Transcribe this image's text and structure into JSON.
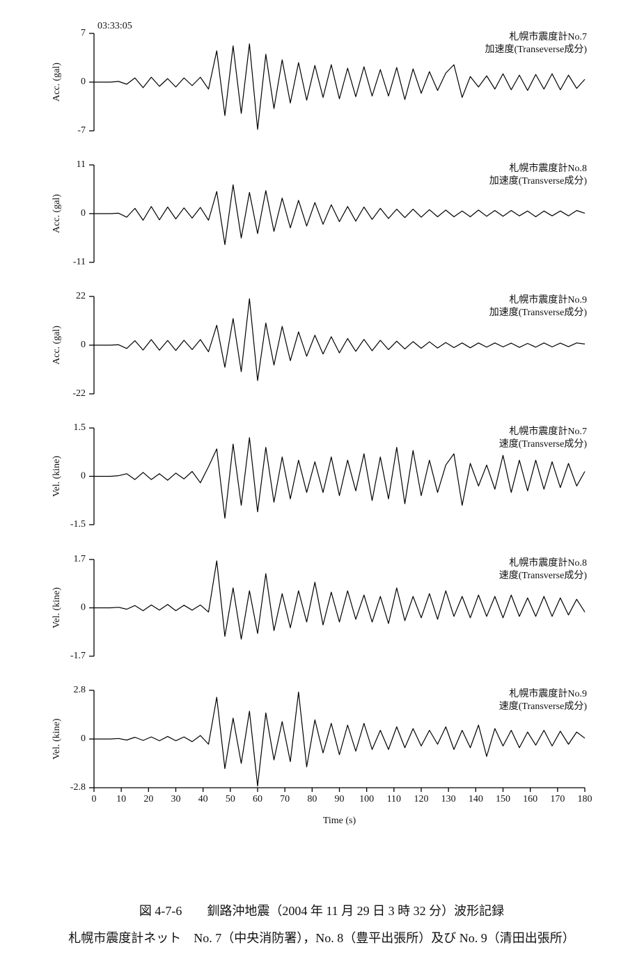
{
  "chart_data": [
    {
      "type": "line",
      "timestamp": "03:33:05",
      "ylabel": "Acc.  (gal)",
      "annotation": [
        "札幌市震度計No.7",
        "加速度(Transeverse成分)"
      ],
      "color": "#000000",
      "xlim": [
        0,
        180
      ],
      "ylim": [
        -7,
        7
      ],
      "yticks": [
        -7,
        0,
        7
      ],
      "x": [
        0,
        3,
        6,
        9,
        12,
        15,
        18,
        21,
        24,
        27,
        30,
        33,
        36,
        39,
        42,
        45,
        48,
        51,
        54,
        57,
        60,
        63,
        66,
        69,
        72,
        75,
        78,
        81,
        84,
        87,
        90,
        93,
        96,
        99,
        102,
        105,
        108,
        111,
        114,
        117,
        120,
        123,
        126,
        129,
        132,
        135,
        138,
        141,
        144,
        147,
        150,
        153,
        156,
        159,
        162,
        165,
        168,
        171,
        174,
        177,
        180
      ],
      "values": [
        0,
        0,
        0,
        0.1,
        -0.3,
        0.6,
        -0.8,
        0.7,
        -0.6,
        0.5,
        -0.7,
        0.6,
        -0.5,
        0.7,
        -1.0,
        4.5,
        -4.8,
        5.2,
        -4.5,
        5.5,
        -6.8,
        4.0,
        -3.8,
        3.2,
        -3.0,
        2.8,
        -2.6,
        2.4,
        -2.2,
        2.5,
        -2.4,
        2.0,
        -2.1,
        2.2,
        -2.0,
        1.8,
        -2.0,
        2.1,
        -2.5,
        1.9,
        -1.6,
        1.5,
        -1.2,
        1.3,
        2.5,
        -2.2,
        0.8,
        -0.7,
        0.9,
        -1.0,
        1.2,
        -1.1,
        1.0,
        -1.2,
        1.1,
        -1.0,
        1.2,
        -1.1,
        1.0,
        -0.9,
        0.4
      ]
    },
    {
      "type": "line",
      "ylabel": "Acc.  (gal)",
      "annotation": [
        "札幌市震度計No.8",
        "加速度(Transverse成分)"
      ],
      "color": "#000000",
      "xlim": [
        0,
        180
      ],
      "ylim": [
        -11,
        11
      ],
      "yticks": [
        -11,
        0,
        11
      ],
      "x": [
        0,
        3,
        6,
        9,
        12,
        15,
        18,
        21,
        24,
        27,
        30,
        33,
        36,
        39,
        42,
        45,
        48,
        51,
        54,
        57,
        60,
        63,
        66,
        69,
        72,
        75,
        78,
        81,
        84,
        87,
        90,
        93,
        96,
        99,
        102,
        105,
        108,
        111,
        114,
        117,
        120,
        123,
        126,
        129,
        132,
        135,
        138,
        141,
        144,
        147,
        150,
        153,
        156,
        159,
        162,
        165,
        168,
        171,
        174,
        177,
        180
      ],
      "values": [
        0,
        0,
        0,
        0.1,
        -0.8,
        1.2,
        -1.5,
        1.6,
        -1.4,
        1.5,
        -1.2,
        1.3,
        -1.0,
        1.4,
        -1.5,
        5.0,
        -7.0,
        6.5,
        -5.5,
        4.8,
        -4.5,
        5.2,
        -4.0,
        3.5,
        -3.2,
        3.0,
        -2.8,
        2.5,
        -2.4,
        2.0,
        -1.8,
        1.6,
        -1.7,
        1.5,
        -1.3,
        1.2,
        -1.1,
        1.0,
        -0.9,
        1.0,
        -0.8,
        0.9,
        -0.7,
        0.8,
        -0.7,
        0.6,
        -0.7,
        0.8,
        -0.6,
        0.7,
        -0.6,
        0.7,
        -0.5,
        0.6,
        -0.7,
        0.6,
        -0.5,
        0.6,
        -0.5,
        0.7,
        0.1
      ]
    },
    {
      "type": "line",
      "ylabel": "Acc.  (gal)",
      "annotation": [
        "札幌市震度計No.9",
        "加速度(Transverse成分)"
      ],
      "color": "#000000",
      "xlim": [
        0,
        180
      ],
      "ylim": [
        -22,
        22
      ],
      "yticks": [
        -22,
        0,
        22
      ],
      "x": [
        0,
        3,
        6,
        9,
        12,
        15,
        18,
        21,
        24,
        27,
        30,
        33,
        36,
        39,
        42,
        45,
        48,
        51,
        54,
        57,
        60,
        63,
        66,
        69,
        72,
        75,
        78,
        81,
        84,
        87,
        90,
        93,
        96,
        99,
        102,
        105,
        108,
        111,
        114,
        117,
        120,
        123,
        126,
        129,
        132,
        135,
        138,
        141,
        144,
        147,
        150,
        153,
        156,
        159,
        162,
        165,
        168,
        171,
        174,
        177,
        180
      ],
      "values": [
        0,
        0,
        0,
        0.2,
        -1.5,
        2.0,
        -2.2,
        2.5,
        -2.3,
        2.1,
        -2.4,
        2.2,
        -2.0,
        2.5,
        -3.0,
        9.0,
        -10.0,
        12.0,
        -12.0,
        21.0,
        -16.0,
        10.0,
        -9.0,
        8.5,
        -7.0,
        6.0,
        -5.0,
        4.5,
        -4.0,
        3.8,
        -3.5,
        3.0,
        -2.8,
        2.6,
        -2.5,
        2.2,
        -2.0,
        1.8,
        -1.7,
        1.6,
        -1.4,
        1.5,
        -1.3,
        1.2,
        -1.1,
        1.0,
        -1.2,
        1.0,
        -0.9,
        1.0,
        -0.8,
        0.9,
        -1.0,
        0.8,
        -0.9,
        1.0,
        -0.8,
        0.9,
        -0.7,
        1.0,
        0.5
      ]
    },
    {
      "type": "line",
      "ylabel": "Vel.  (kine)",
      "annotation": [
        "札幌市震度計No.7",
        "速度(Transverse成分)"
      ],
      "color": "#000000",
      "xlim": [
        0,
        180
      ],
      "ylim": [
        -1.5,
        1.5
      ],
      "yticks": [
        -1.5,
        0,
        1.5
      ],
      "x": [
        0,
        3,
        6,
        9,
        12,
        15,
        18,
        21,
        24,
        27,
        30,
        33,
        36,
        39,
        42,
        45,
        48,
        51,
        54,
        57,
        60,
        63,
        66,
        69,
        72,
        75,
        78,
        81,
        84,
        87,
        90,
        93,
        96,
        99,
        102,
        105,
        108,
        111,
        114,
        117,
        120,
        123,
        126,
        129,
        132,
        135,
        138,
        141,
        144,
        147,
        150,
        153,
        156,
        159,
        162,
        165,
        168,
        171,
        174,
        177,
        180
      ],
      "values": [
        0,
        0,
        0,
        0.02,
        0.08,
        -0.1,
        0.12,
        -0.1,
        0.08,
        -0.12,
        0.1,
        -0.08,
        0.15,
        -0.2,
        0.3,
        0.85,
        -1.3,
        1.0,
        -0.9,
        1.2,
        -1.1,
        0.9,
        -0.8,
        0.6,
        -0.7,
        0.5,
        -0.5,
        0.45,
        -0.5,
        0.6,
        -0.6,
        0.5,
        -0.45,
        0.7,
        -0.75,
        0.6,
        -0.7,
        0.9,
        -0.85,
        0.8,
        -0.6,
        0.5,
        -0.5,
        0.35,
        0.7,
        -0.9,
        0.4,
        -0.3,
        0.35,
        -0.4,
        0.65,
        -0.5,
        0.5,
        -0.45,
        0.5,
        -0.4,
        0.45,
        -0.35,
        0.4,
        -0.3,
        0.15
      ]
    },
    {
      "type": "line",
      "ylabel": "Vel.  (kine)",
      "annotation": [
        "札幌市震度計No.8",
        "速度(Transverse成分)"
      ],
      "color": "#000000",
      "xlim": [
        0,
        180
      ],
      "ylim": [
        -1.7,
        1.7
      ],
      "yticks": [
        -1.7,
        0,
        1.7
      ],
      "x": [
        0,
        3,
        6,
        9,
        12,
        15,
        18,
        21,
        24,
        27,
        30,
        33,
        36,
        39,
        42,
        45,
        48,
        51,
        54,
        57,
        60,
        63,
        66,
        69,
        72,
        75,
        78,
        81,
        84,
        87,
        90,
        93,
        96,
        99,
        102,
        105,
        108,
        111,
        114,
        117,
        120,
        123,
        126,
        129,
        132,
        135,
        138,
        141,
        144,
        147,
        150,
        153,
        156,
        159,
        162,
        165,
        168,
        171,
        174,
        177,
        180
      ],
      "values": [
        0,
        0,
        0,
        0.02,
        -0.05,
        0.08,
        -0.1,
        0.1,
        -0.08,
        0.12,
        -0.1,
        0.09,
        -0.08,
        0.1,
        -0.15,
        1.65,
        -1.0,
        0.7,
        -1.1,
        0.6,
        -0.9,
        1.2,
        -0.8,
        0.5,
        -0.7,
        0.6,
        -0.5,
        0.9,
        -0.6,
        0.55,
        -0.5,
        0.6,
        -0.4,
        0.45,
        -0.5,
        0.4,
        -0.55,
        0.7,
        -0.45,
        0.4,
        -0.35,
        0.5,
        -0.4,
        0.6,
        -0.3,
        0.4,
        -0.35,
        0.45,
        -0.3,
        0.4,
        -0.35,
        0.45,
        -0.3,
        0.35,
        -0.3,
        0.4,
        -0.3,
        0.35,
        -0.25,
        0.3,
        -0.15
      ]
    },
    {
      "type": "line",
      "ylabel": "Vel.  (kine)",
      "annotation": [
        "札幌市震度計No.9",
        "速度(Transverse成分)"
      ],
      "color": "#000000",
      "xlim": [
        0,
        180
      ],
      "ylim": [
        -2.8,
        2.8
      ],
      "yticks": [
        -2.8,
        0,
        2.8
      ],
      "xticks": [
        0,
        10,
        20,
        30,
        40,
        50,
        60,
        70,
        80,
        90,
        100,
        110,
        120,
        130,
        140,
        150,
        160,
        170,
        180
      ],
      "xlabel": "Time  (s)",
      "x": [
        0,
        3,
        6,
        9,
        12,
        15,
        18,
        21,
        24,
        27,
        30,
        33,
        36,
        39,
        42,
        45,
        48,
        51,
        54,
        57,
        60,
        63,
        66,
        69,
        72,
        75,
        78,
        81,
        84,
        87,
        90,
        93,
        96,
        99,
        102,
        105,
        108,
        111,
        114,
        117,
        120,
        123,
        126,
        129,
        132,
        135,
        138,
        141,
        144,
        147,
        150,
        153,
        156,
        159,
        162,
        165,
        168,
        171,
        174,
        177,
        180
      ],
      "values": [
        0,
        0,
        0,
        0.03,
        -0.06,
        0.1,
        -0.08,
        0.12,
        -0.1,
        0.15,
        -0.1,
        0.12,
        -0.15,
        0.2,
        -0.3,
        2.4,
        -1.7,
        1.2,
        -1.4,
        1.6,
        -2.7,
        1.5,
        -1.2,
        1.0,
        -1.3,
        2.7,
        -1.6,
        1.1,
        -0.8,
        0.9,
        -0.9,
        0.8,
        -0.7,
        0.9,
        -0.6,
        0.5,
        -0.6,
        0.7,
        -0.5,
        0.6,
        -0.4,
        0.5,
        -0.3,
        0.7,
        -0.6,
        0.5,
        -0.5,
        0.8,
        -1.0,
        0.6,
        -0.4,
        0.5,
        -0.5,
        0.4,
        -0.35,
        0.5,
        -0.4,
        0.45,
        -0.3,
        0.4,
        0.05
      ]
    }
  ],
  "caption": [
    "図 4-7-6　　釧路沖地震（2004 年 11 月 29 日 3 時 32 分）波形記録",
    "札幌市震度計ネット　No. 7（中央消防署），No. 8（豊平出張所）及び No. 9（清田出張所）"
  ]
}
